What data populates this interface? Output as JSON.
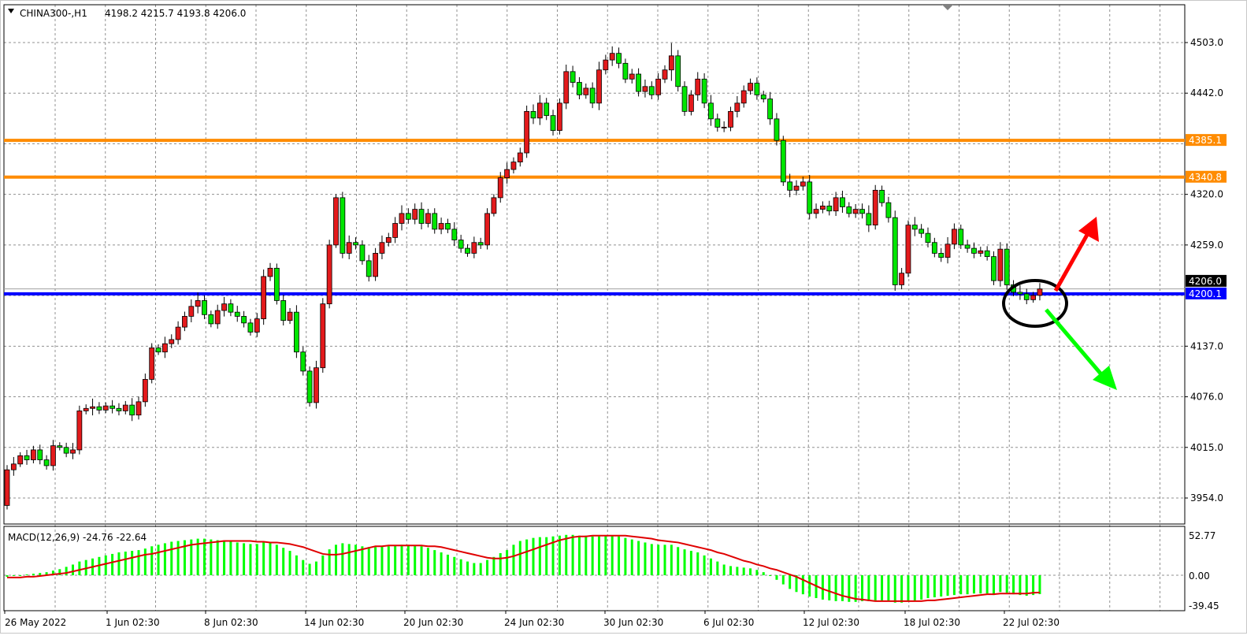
{
  "header": {
    "symbol": "CHINA300-,H1",
    "ohlc_text": "4198.2 4215.7 4193.8 4206.0"
  },
  "macd_header": {
    "label": "MACD(12,26,9) -24.76 -22.64"
  },
  "colors": {
    "bull": "#e31a1c",
    "bear": "#00e600",
    "histogram": "#00ff00",
    "signal": "#e00000",
    "resistance": "#ff8c00",
    "support": "#0000ff",
    "up_arrow": "#ff0000",
    "down_arrow": "#00ff00",
    "circle": "#000000"
  },
  "chart_data": [
    {
      "type": "candlestick",
      "title": "CHINA300-,H1",
      "price_ticks": [
        "4503.0",
        "4442.0",
        "4320.0",
        "4259.0",
        "4137.0",
        "4076.0",
        "4015.0",
        "3954.0"
      ],
      "ylim": [
        3930,
        4550
      ],
      "date_labels": [
        "26 May 2022",
        "1 Jun 02:30",
        "8 Jun 02:30",
        "14 Jun 02:30",
        "20 Jun 02:30",
        "24 Jun 02:30",
        "30 Jun 02:30",
        "6 Jul 02:30",
        "12 Jul 02:30",
        "18 Jul 02:30",
        "22 Jul 02:30"
      ],
      "grid": true,
      "close": [
        3988,
        3995,
        4005,
        4000,
        4012,
        4000,
        3993,
        4017,
        4015,
        4008,
        4012,
        4059,
        4062,
        4064,
        4060,
        4065,
        4062,
        4059,
        4066,
        4054,
        4070,
        4097,
        4135,
        4130,
        4140,
        4145,
        4160,
        4173,
        4185,
        4192,
        4175,
        4164,
        4180,
        4188,
        4178,
        4173,
        4165,
        4154,
        4170,
        4221,
        4231,
        4192,
        4168,
        4178,
        4130,
        4107,
        4069,
        4111,
        4188,
        4259,
        4316,
        4249,
        4262,
        4259,
        4240,
        4221,
        4249,
        4262,
        4268,
        4285,
        4297,
        4290,
        4302,
        4285,
        4297,
        4278,
        4285,
        4278,
        4265,
        4255,
        4249,
        4262,
        4259,
        4297,
        4316,
        4340,
        4350,
        4359,
        4370,
        4420,
        4412,
        4430,
        4415,
        4397,
        4430,
        4468,
        4455,
        4440,
        4448,
        4430,
        4470,
        4482,
        4490,
        4478,
        4459,
        4465,
        4444,
        4450,
        4440,
        4459,
        4470,
        4487,
        4450,
        4420,
        4440,
        4459,
        4430,
        4411,
        4401,
        4401,
        4420,
        4430,
        4445,
        4454,
        4440,
        4435,
        4411,
        4385,
        4335,
        4325,
        4330,
        4335,
        4297,
        4302,
        4306,
        4300,
        4316,
        4305,
        4297,
        4302,
        4297,
        4283,
        4325,
        4310,
        4292,
        4211,
        4225,
        4283,
        4278,
        4273,
        4262,
        4249,
        4244,
        4260,
        4278,
        4259,
        4255,
        4249,
        4252,
        4245,
        4216,
        4254,
        4211,
        4202,
        4200,
        4193,
        4198.2,
        4206.0
      ],
      "first_open": 3945,
      "wick": [
        8,
        12,
        6,
        10,
        7,
        9,
        8,
        10,
        6,
        8,
        12,
        9,
        7,
        14,
        8,
        6,
        10,
        9,
        7,
        12,
        9,
        10,
        8,
        6,
        12,
        9,
        10,
        8,
        12,
        14,
        9,
        7,
        10,
        12,
        8,
        11,
        9,
        7,
        10,
        12,
        9,
        8,
        10,
        7,
        12,
        9,
        8,
        12,
        10,
        9,
        6,
        10,
        12,
        9,
        8,
        10,
        9,
        12,
        8,
        11,
        14,
        9,
        10,
        12,
        8,
        9,
        10,
        8,
        12,
        9,
        7,
        10,
        8,
        9,
        6,
        10,
        12,
        8,
        9,
        10,
        12,
        14,
        9,
        10,
        8,
        12,
        10,
        9,
        8,
        10,
        14,
        9,
        12,
        10,
        8,
        9,
        10,
        12,
        9,
        10,
        8,
        22,
        10,
        9,
        8,
        12,
        10,
        14,
        9,
        10,
        8,
        12,
        9,
        8,
        10,
        7,
        12,
        10,
        8,
        14,
        10,
        9,
        12,
        10,
        8,
        9,
        10,
        12,
        8,
        9,
        10,
        14,
        9,
        8,
        10,
        12,
        9,
        8,
        14,
        9,
        10,
        8,
        9,
        12,
        10,
        8,
        9,
        10,
        7,
        8,
        9,
        12,
        10,
        8,
        12,
        9,
        6,
        10
      ],
      "horizontal_lines": [
        {
          "price": 4385.1,
          "label": "4385.1",
          "color": "#ff8c00"
        },
        {
          "price": 4340.8,
          "label": "4340.8",
          "color": "#ff8c00"
        },
        {
          "price": 4200.1,
          "label": "4200.1",
          "color": "#0000ff"
        }
      ],
      "current_price": {
        "price": 4206.0,
        "label": "4206.0"
      }
    },
    {
      "type": "bar+line",
      "title": "MACD(12,26,9) -24.76 -22.64",
      "ticks": [
        "52.77",
        "0.00",
        "-39.45"
      ],
      "ylim": [
        -45,
        63
      ],
      "macd": [
        -2,
        -1,
        0,
        1,
        2,
        3,
        4,
        6,
        8,
        11,
        14,
        18,
        20,
        22,
        24,
        26,
        28,
        30,
        31,
        32,
        33,
        35,
        38,
        40,
        42,
        44,
        45,
        46,
        47,
        48,
        48,
        47,
        46,
        45,
        44,
        43,
        42,
        41,
        41,
        43,
        44,
        40,
        36,
        32,
        26,
        20,
        15,
        18,
        26,
        34,
        40,
        42,
        41,
        40,
        38,
        37,
        37,
        38,
        38,
        39,
        40,
        40,
        39,
        38,
        36,
        33,
        30,
        27,
        24,
        21,
        18,
        16,
        16,
        20,
        24,
        29,
        33,
        40,
        45,
        47,
        49,
        50,
        50,
        51,
        52,
        53,
        53,
        52,
        52,
        51,
        51,
        52,
        52,
        51,
        49,
        47,
        45,
        43,
        41,
        40,
        40,
        40,
        37,
        34,
        32,
        30,
        26,
        22,
        18,
        14,
        12,
        11,
        10,
        9,
        7,
        4,
        0,
        -6,
        -12,
        -18,
        -22,
        -25,
        -28,
        -30,
        -32,
        -33,
        -34,
        -34,
        -35,
        -35,
        -34,
        -34,
        -33,
        -33,
        -34,
        -36,
        -36,
        -34,
        -33,
        -32,
        -30,
        -29,
        -28,
        -27,
        -26,
        -25,
        -25,
        -24,
        -24,
        -24,
        -26,
        -22,
        -23,
        -25,
        -26,
        -27,
        -26,
        -24.76
      ],
      "signal": [
        -3,
        -3,
        -3,
        -2,
        -2,
        -1,
        0,
        1,
        2,
        3,
        5,
        7,
        9,
        11,
        13,
        15,
        17,
        19,
        21,
        23,
        25,
        27,
        28,
        30,
        32,
        34,
        36,
        38,
        40,
        41,
        42,
        43,
        44,
        45,
        45,
        45,
        45,
        45,
        44,
        44,
        43,
        43,
        42,
        41,
        39,
        37,
        34,
        31,
        28,
        27,
        27,
        28,
        30,
        32,
        34,
        36,
        38,
        38,
        39,
        39,
        39,
        39,
        39,
        39,
        38,
        38,
        37,
        35,
        33,
        31,
        29,
        27,
        25,
        23,
        22,
        22,
        23,
        25,
        28,
        31,
        34,
        37,
        40,
        43,
        46,
        48,
        50,
        51,
        51,
        52,
        52,
        52,
        52,
        52,
        52,
        51,
        50,
        49,
        48,
        46,
        45,
        44,
        43,
        41,
        39,
        37,
        35,
        33,
        30,
        28,
        25,
        22,
        19,
        17,
        14,
        12,
        9,
        7,
        4,
        1,
        -2,
        -6,
        -10,
        -14,
        -18,
        -21,
        -24,
        -27,
        -29,
        -31,
        -32,
        -33,
        -34,
        -34,
        -34,
        -34,
        -34,
        -34,
        -34,
        -34,
        -33,
        -33,
        -32,
        -31,
        -30,
        -29,
        -28,
        -27,
        -26,
        -25,
        -25,
        -24,
        -24,
        -24,
        -24,
        -24,
        -23,
        -22.64
      ]
    }
  ]
}
